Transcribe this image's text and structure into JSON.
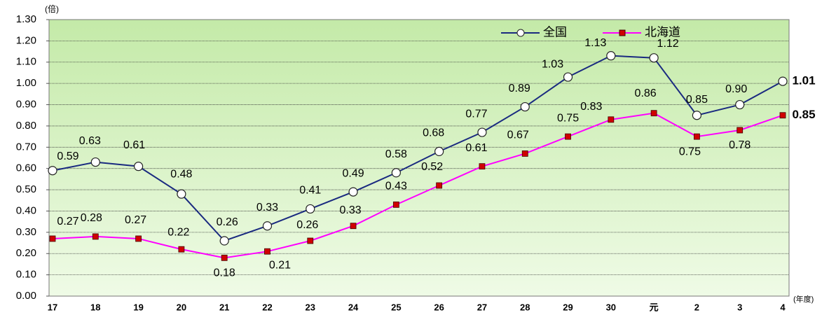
{
  "chart_data": {
    "type": "line",
    "y_unit_label": "(倍)",
    "x_unit_label": "(年度)",
    "categories": [
      "17",
      "18",
      "19",
      "20",
      "21",
      "22",
      "23",
      "24",
      "25",
      "26",
      "27",
      "28",
      "29",
      "30",
      "元",
      "2",
      "3",
      "4"
    ],
    "series": [
      {
        "name": "全国",
        "color": "#1a2a80",
        "marker": "circle",
        "values": [
          0.59,
          0.63,
          0.61,
          0.48,
          0.26,
          0.33,
          0.41,
          0.49,
          0.58,
          0.68,
          0.77,
          0.89,
          1.03,
          1.13,
          1.12,
          0.85,
          0.9,
          1.01
        ],
        "value_labels": [
          "0.59",
          "0.63",
          "0.61",
          "0.48",
          "0.26",
          "0.33",
          "0.41",
          "0.49",
          "0.58",
          "0.68",
          "0.77",
          "0.89",
          "1.03",
          "1.13",
          "1.12",
          "0.85",
          "0.90",
          "1.01"
        ]
      },
      {
        "name": "北海道",
        "color": "#ff00ff",
        "marker": "square",
        "marker_color": "#d00000",
        "values": [
          0.27,
          0.28,
          0.27,
          0.22,
          0.18,
          0.21,
          0.26,
          0.33,
          0.43,
          0.52,
          0.61,
          0.67,
          0.75,
          0.83,
          0.86,
          0.75,
          0.78,
          0.85
        ],
        "value_labels": [
          "0.27",
          "0.28",
          "0.27",
          "0.22",
          "0.18",
          "0.21",
          "0.26",
          "0.33",
          "0.43",
          "0.52",
          "0.61",
          "0.67",
          "0.75",
          "0.83",
          "0.86",
          "0.75",
          "0.78",
          "0.85"
        ]
      }
    ],
    "ylim": [
      0,
      1.3
    ],
    "yticks": [
      {
        "value": 0,
        "label": "0.00"
      },
      {
        "value": 0.1,
        "label": "0.10"
      },
      {
        "value": 0.2,
        "label": "0.20"
      },
      {
        "value": 0.3,
        "label": "0.30"
      },
      {
        "value": 0.4,
        "label": "0.40"
      },
      {
        "value": 0.5,
        "label": "0.50"
      },
      {
        "value": 0.6,
        "label": "0.60"
      },
      {
        "value": 0.7,
        "label": "0.70"
      },
      {
        "value": 0.8,
        "label": "0.80"
      },
      {
        "value": 0.9,
        "label": "0.90"
      },
      {
        "value": 1.0,
        "label": "1.00"
      },
      {
        "value": 1.1,
        "label": "1.10"
      },
      {
        "value": 1.2,
        "label": "1.20"
      },
      {
        "value": 1.3,
        "label": "1.30"
      }
    ],
    "grid": true
  }
}
